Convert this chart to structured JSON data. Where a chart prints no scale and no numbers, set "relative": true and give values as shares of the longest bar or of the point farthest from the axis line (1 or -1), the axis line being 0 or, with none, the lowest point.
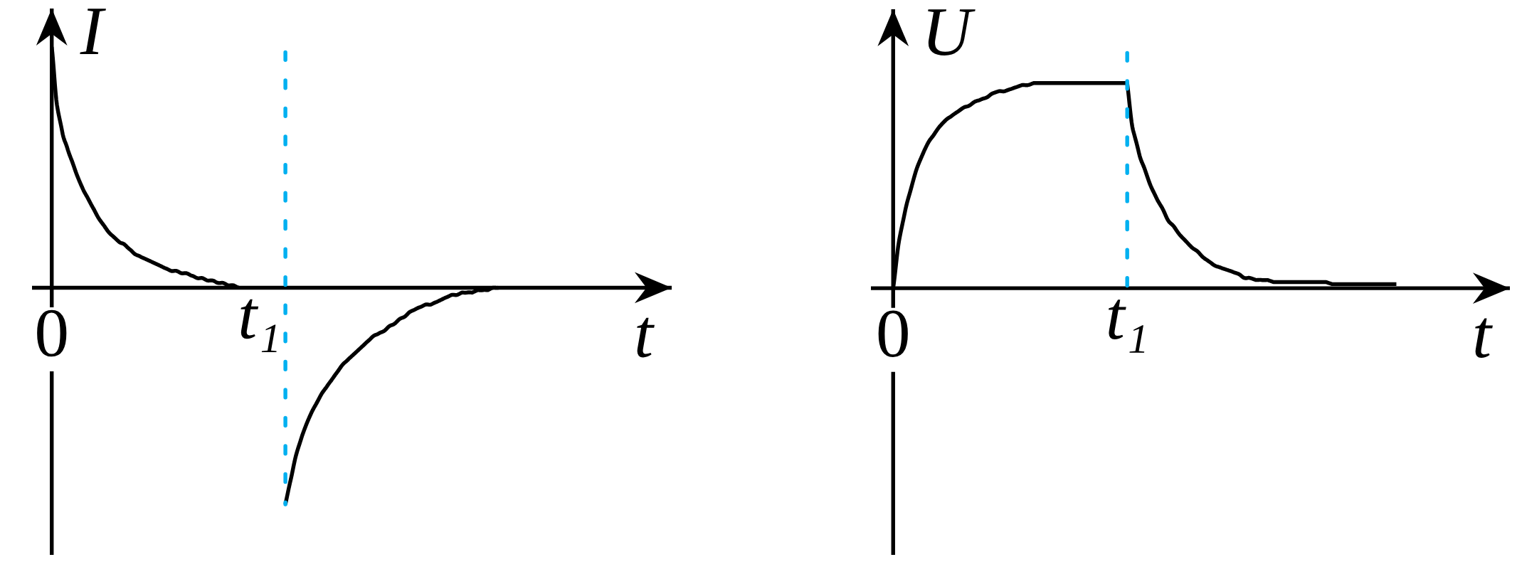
{
  "chart_data": [
    {
      "type": "line",
      "relative": true,
      "ylabel": "I",
      "xlabel": "t",
      "tick_labels": "x",
      "categories": [
        "0",
        null,
        null,
        null,
        null,
        null,
        null,
        null,
        null,
        null,
        null,
        null,
        null,
        null,
        null,
        null,
        null,
        null,
        null,
        null,
        null,
        null,
        null,
        null,
        null,
        null,
        null,
        null,
        null,
        null,
        null,
        null,
        null,
        null,
        null,
        null,
        null,
        null,
        null,
        null,
        "t₁",
        null,
        null,
        null,
        null,
        null,
        null,
        null,
        null,
        null,
        null,
        null,
        null,
        null,
        null,
        null,
        null,
        null,
        null,
        null,
        null,
        null,
        null,
        null,
        null,
        null,
        null,
        null,
        null,
        null,
        null,
        null,
        null,
        null,
        null,
        null,
        null,
        null,
        null,
        null,
        null,
        null,
        null,
        null,
        null,
        null,
        null,
        null,
        null,
        null,
        null,
        null,
        null,
        null,
        null,
        null,
        null,
        null,
        null,
        null,
        null,
        null,
        null,
        null,
        null,
        null,
        null,
        null,
        null,
        null,
        null,
        null,
        null,
        null,
        null,
        null,
        null,
        null,
        null
      ],
      "series": [
        {
          "color": "#000000",
          "values": [
            1,
            0.76,
            0.65,
            0.58,
            0.52,
            0.46,
            0.41,
            0.37,
            0.33,
            0.29,
            0.26,
            0.23,
            0.21,
            0.19,
            0.18,
            0.16,
            0.14,
            0.13,
            0.12,
            0.11,
            0.1,
            0.09,
            0.08,
            0.07,
            0.07,
            0.06,
            0.06,
            0.05,
            0.04,
            0.04,
            0.03,
            0.03,
            0.02,
            0.02,
            0.01,
            0.01,
            0,
            null,
            null,
            null,
            null,
            null,
            null,
            null,
            null,
            null,
            null,
            null,
            null,
            null,
            null,
            null,
            null,
            null,
            null,
            null,
            null,
            null,
            null,
            null,
            null,
            null,
            null,
            null,
            null,
            null,
            null,
            null,
            null,
            null,
            null,
            null,
            null,
            null,
            null,
            null,
            null,
            null,
            null,
            null,
            null,
            null,
            null,
            null,
            null,
            null,
            null,
            null,
            null,
            null,
            null,
            null,
            null,
            null,
            null,
            null,
            null,
            null,
            null,
            null,
            null,
            null,
            null,
            null,
            null,
            null,
            null,
            null,
            null,
            null,
            null,
            null,
            null,
            null,
            null,
            null,
            null,
            null,
            null
          ]
        },
        {
          "color": "#000000",
          "values": [
            null,
            null,
            null,
            null,
            null,
            null,
            null,
            null,
            null,
            null,
            null,
            null,
            null,
            null,
            null,
            null,
            null,
            null,
            null,
            null,
            null,
            null,
            null,
            null,
            null,
            null,
            null,
            null,
            null,
            null,
            null,
            null,
            null,
            null,
            null,
            null,
            null,
            null,
            null,
            null,
            null,
            null,
            null,
            null,
            null,
            -0.9,
            -0.8,
            -0.7,
            -0.63,
            -0.57,
            -0.52,
            -0.48,
            -0.44,
            -0.41,
            -0.38,
            -0.35,
            -0.32,
            -0.3,
            -0.28,
            -0.26,
            -0.24,
            -0.22,
            -0.2,
            -0.19,
            -0.18,
            -0.16,
            -0.15,
            -0.13,
            -0.12,
            -0.1,
            -0.09,
            -0.08,
            -0.07,
            -0.07,
            -0.06,
            -0.05,
            -0.04,
            -0.03,
            -0.03,
            -0.02,
            -0.02,
            -0.02,
            -0.01,
            -0.01,
            -0.01,
            0,
            0,
            null,
            null,
            null,
            null,
            null,
            null,
            null,
            null,
            null,
            null,
            null,
            null,
            null,
            null,
            null,
            null,
            null,
            null,
            null,
            null,
            null,
            null,
            null,
            null,
            null,
            null,
            null,
            null,
            null,
            null,
            null,
            null
          ]
        }
      ]
    },
    {
      "type": "line",
      "relative": true,
      "ylabel": "U",
      "xlabel": "t",
      "tick_labels": "x",
      "categories": [
        "0",
        null,
        null,
        null,
        null,
        null,
        null,
        null,
        null,
        null,
        null,
        null,
        null,
        null,
        null,
        null,
        null,
        null,
        null,
        null,
        null,
        null,
        null,
        null,
        null,
        null,
        null,
        null,
        null,
        null,
        null,
        null,
        null,
        null,
        null,
        null,
        null,
        null,
        null,
        null,
        "t₁",
        null,
        null,
        null,
        null,
        null,
        null,
        null,
        null,
        null,
        null,
        null,
        null,
        null,
        null,
        null,
        null,
        null,
        null,
        null,
        null,
        null,
        null,
        null,
        null,
        null,
        null,
        null,
        null,
        null,
        null,
        null,
        null,
        null,
        null,
        null,
        null,
        null,
        null,
        null,
        null,
        null,
        null,
        null,
        null,
        null,
        null,
        null,
        null,
        null,
        null,
        null,
        null,
        null,
        null,
        null,
        null,
        null,
        null,
        null,
        null,
        null,
        null,
        null,
        null
      ],
      "series": [
        {
          "color": "#000000",
          "values": [
            0,
            0.23,
            0.37,
            0.48,
            0.58,
            0.65,
            0.71,
            0.75,
            0.79,
            0.82,
            0.84,
            0.86,
            0.88,
            0.89,
            0.91,
            0.92,
            0.93,
            0.95,
            0.96,
            0.96,
            0.97,
            0.98,
            0.99,
            0.99,
            1,
            1,
            1,
            1,
            1,
            1,
            1,
            1,
            1,
            1,
            1,
            1,
            1,
            1,
            1,
            1,
            1,
            0.77,
            0.66,
            0.58,
            0.5,
            0.44,
            0.39,
            0.33,
            0.3,
            0.26,
            0.23,
            0.2,
            0.18,
            0.15,
            0.13,
            0.11,
            0.1,
            0.09,
            0.08,
            0.07,
            0.05,
            0.05,
            0.04,
            0.04,
            0.04,
            0.03,
            0.03,
            0.03,
            0.03,
            0.03,
            0.03,
            0.03,
            0.03,
            0.03,
            0.03,
            0.02,
            0.02,
            0.02,
            0.02,
            0.02,
            0.02,
            0.02,
            0.02,
            0.02,
            0.02,
            0.02,
            0.02,
            null,
            null,
            null,
            null,
            null,
            null,
            null,
            null,
            null,
            null,
            null,
            null,
            null,
            null,
            null,
            null,
            null,
            null
          ]
        }
      ],
      "ref_lines": [
        {
          "axis": "x",
          "value": "t₁",
          "color": "#00b0f0",
          "line_style": "dashed"
        }
      ]
    }
  ]
}
